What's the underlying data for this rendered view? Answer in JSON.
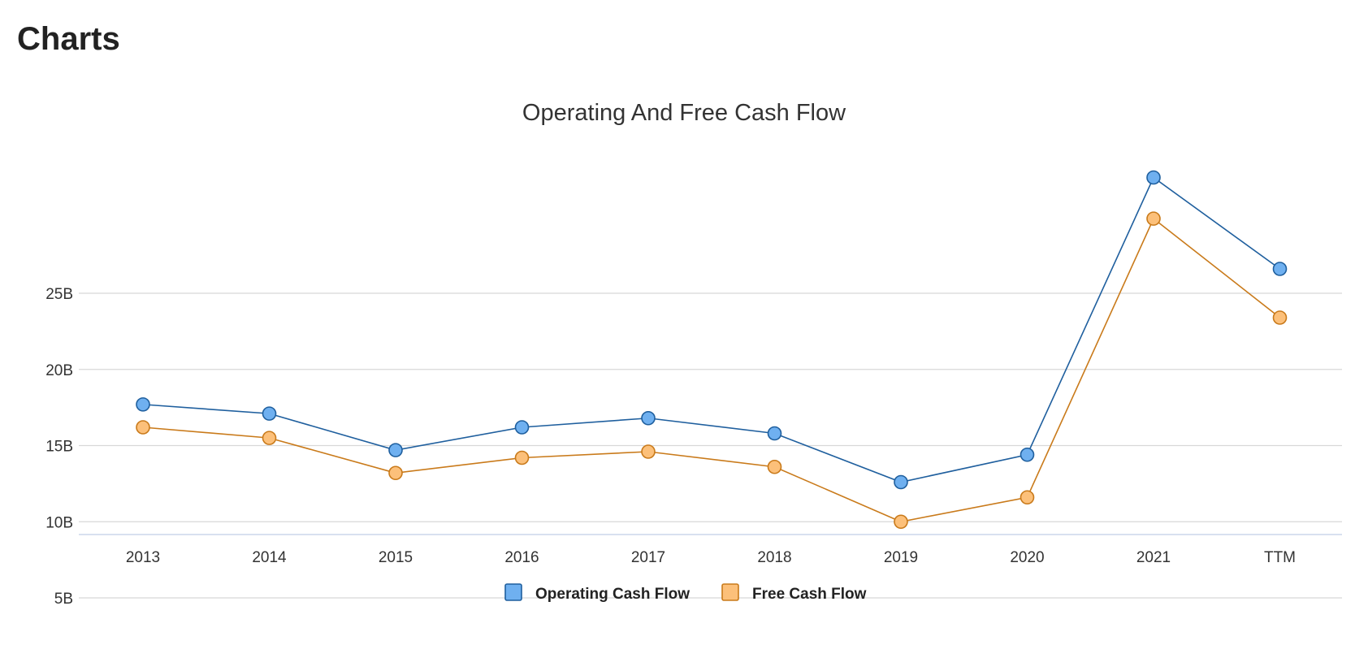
{
  "page": {
    "heading": "Charts"
  },
  "chart_data": {
    "type": "line",
    "title": "Operating And Free Cash Flow",
    "xlabel": "",
    "ylabel": "",
    "categories": [
      "2013",
      "2014",
      "2015",
      "2016",
      "2017",
      "2018",
      "2019",
      "2020",
      "2021",
      "TTM"
    ],
    "y_ticks": [
      5,
      10,
      15,
      20,
      25
    ],
    "y_tick_labels": [
      "5B",
      "10B",
      "15B",
      "20B",
      "25B"
    ],
    "ylim": [
      5,
      33
    ],
    "grid": true,
    "legend_position": "bottom",
    "series": [
      {
        "name": "Operating Cash Flow",
        "color": "#1f5f9e",
        "fill": "#6fb0f0",
        "values": [
          17.7,
          17.1,
          14.7,
          16.2,
          16.8,
          15.8,
          12.6,
          14.4,
          32.6,
          26.6
        ]
      },
      {
        "name": "Free Cash Flow",
        "color": "#c97a1a",
        "fill": "#fcc07a",
        "values": [
          16.2,
          15.5,
          13.2,
          14.2,
          14.6,
          13.6,
          10.0,
          11.6,
          29.9,
          23.4
        ]
      }
    ]
  }
}
